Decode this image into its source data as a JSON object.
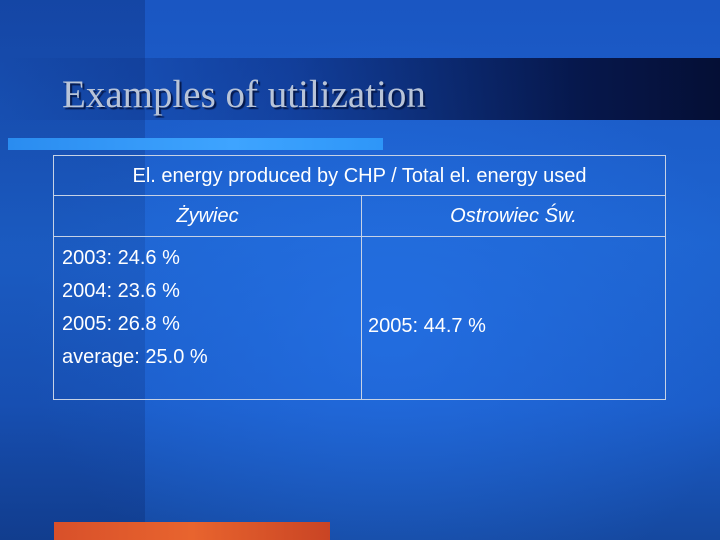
{
  "slide": {
    "title": "Examples of utilization",
    "table": {
      "header": "El. energy produced by CHP / Total el. energy used",
      "columns": [
        {
          "name": "Żywiec",
          "values": [
            "2003: 24.6 %",
            "2004: 23.6 %",
            "2005: 26.8 %",
            "average: 25.0 %"
          ]
        },
        {
          "name": "Ostrowiec Św.",
          "values": [
            "2005: 44.7 %"
          ]
        }
      ]
    }
  },
  "colors": {
    "background": "#1e5fc4",
    "title_text": "#b8c4d8",
    "table_text": "#ffffff",
    "table_border": "#c6d2e6",
    "underline_accent": "#3ea4ff",
    "bottom_accent": "#e8642e"
  }
}
